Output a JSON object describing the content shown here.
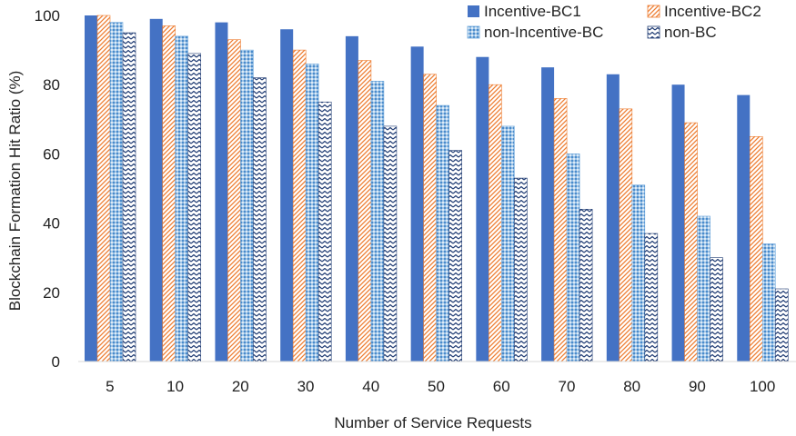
{
  "chart_data": {
    "type": "bar",
    "title": "",
    "xlabel": "Number of Service Requests",
    "ylabel": "Blockchain Formation Hit Ratio (%)",
    "ylim": [
      0,
      100
    ],
    "yticks": [
      0,
      20,
      40,
      60,
      80,
      100
    ],
    "grid": false,
    "legend_position": "top-right",
    "categories": [
      "5",
      "10",
      "20",
      "30",
      "40",
      "50",
      "60",
      "70",
      "80",
      "90",
      "100"
    ],
    "series": [
      {
        "name": "Incentive-BC1",
        "color": "#4472C4",
        "pattern": "solid",
        "values": [
          100,
          99,
          98,
          96,
          94,
          91,
          88,
          85,
          83,
          80,
          77
        ]
      },
      {
        "name": "Incentive-BC2",
        "color": "#ED7D31",
        "pattern": "diagonal-stripes",
        "values": [
          100,
          97,
          93,
          90,
          87,
          83,
          80,
          76,
          73,
          69,
          65
        ]
      },
      {
        "name": "non-Incentive-BC",
        "color": "#5B9BD5",
        "pattern": "dotted-grid",
        "values": [
          98,
          94,
          90,
          86,
          81,
          74,
          68,
          60,
          51,
          42,
          34
        ]
      },
      {
        "name": "non-BC",
        "color": "#1F3B73",
        "pattern": "zigzag",
        "values": [
          95,
          89,
          82,
          75,
          68,
          61,
          53,
          44,
          37,
          30,
          21
        ]
      }
    ]
  }
}
